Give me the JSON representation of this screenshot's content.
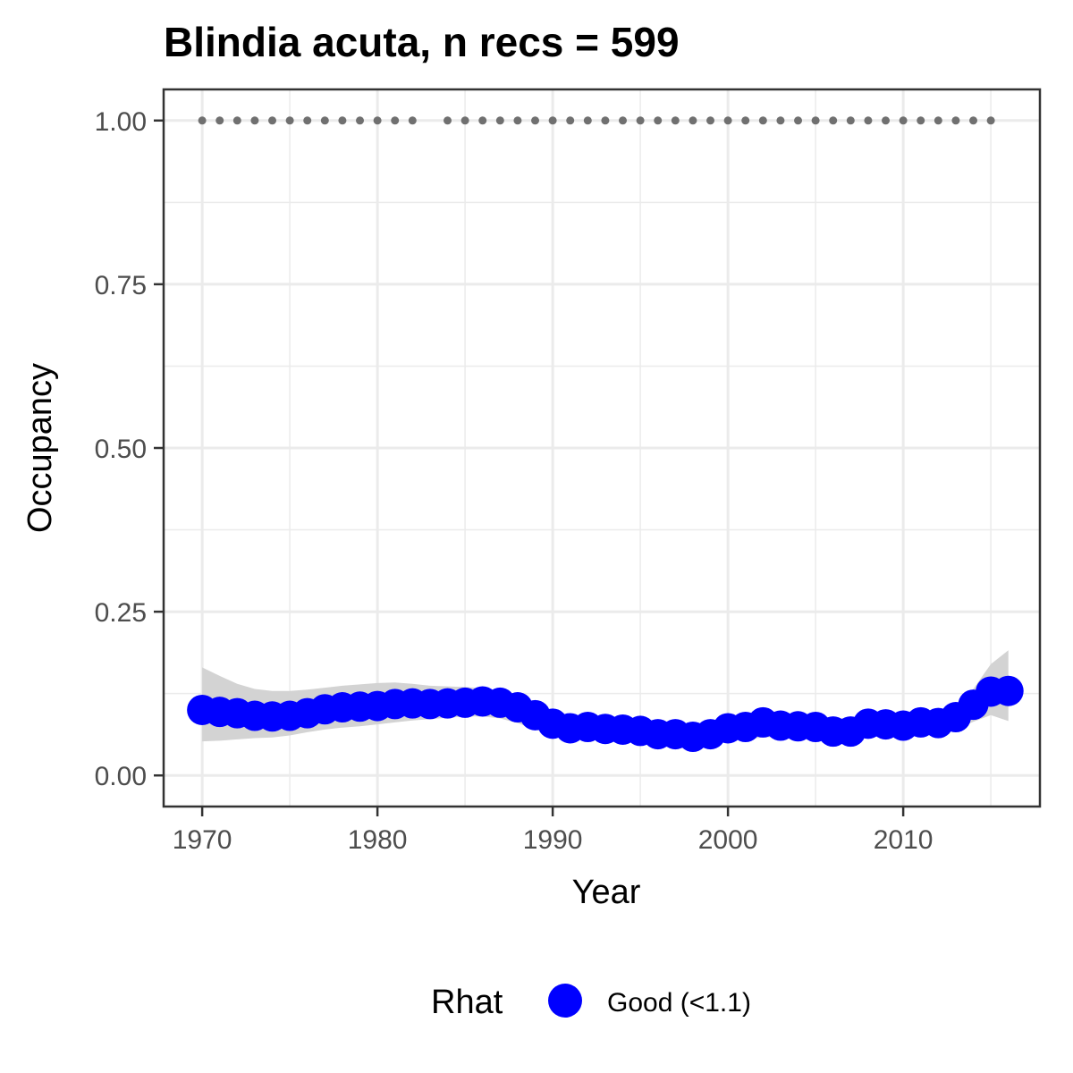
{
  "chart_data": {
    "type": "line",
    "title": "Blindia acuta, n recs = 599",
    "xlabel": "Year",
    "ylabel": "Occupancy",
    "xlim": [
      1967.8,
      2017.8
    ],
    "ylim": [
      -0.0475,
      1.0475
    ],
    "x_ticks": [
      1970,
      1980,
      1990,
      2000,
      2010
    ],
    "x_tick_labels": [
      "1970",
      "1980",
      "1990",
      "2000",
      "2010"
    ],
    "y_ticks": [
      0,
      0.25,
      0.5,
      0.75,
      1.0
    ],
    "y_tick_labels": [
      "0.00",
      "0.25",
      "0.50",
      "0.75",
      "1.00"
    ],
    "grid": true,
    "legend": {
      "position": "bottom",
      "title": "Rhat",
      "entries": [
        {
          "label": "Good (<1.1)",
          "color": "#0000ff"
        }
      ]
    },
    "colors": {
      "points": "#0000ff",
      "ribbon": "#d3d3d3",
      "record_years": "#707070",
      "grid": "#ebebeb",
      "panel_border": "#333333"
    },
    "series": [
      {
        "type": "points_with_ribbon",
        "x": [
          1970,
          1971,
          1972,
          1973,
          1974,
          1975,
          1976,
          1977,
          1978,
          1979,
          1980,
          1981,
          1982,
          1983,
          1984,
          1985,
          1986,
          1987,
          1988,
          1989,
          1990,
          1991,
          1992,
          1993,
          1994,
          1995,
          1996,
          1997,
          1998,
          1999,
          2000,
          2001,
          2002,
          2003,
          2004,
          2005,
          2006,
          2007,
          2008,
          2009,
          2010,
          2011,
          2012,
          2013,
          2014,
          2015,
          2016
        ],
        "values": [
          0.1,
          0.097,
          0.095,
          0.091,
          0.09,
          0.091,
          0.095,
          0.101,
          0.104,
          0.105,
          0.106,
          0.109,
          0.11,
          0.109,
          0.11,
          0.111,
          0.113,
          0.111,
          0.104,
          0.092,
          0.079,
          0.072,
          0.074,
          0.071,
          0.07,
          0.068,
          0.063,
          0.063,
          0.059,
          0.063,
          0.072,
          0.074,
          0.081,
          0.076,
          0.075,
          0.074,
          0.067,
          0.067,
          0.079,
          0.078,
          0.076,
          0.081,
          0.08,
          0.089,
          0.108,
          0.128,
          0.129
        ],
        "lower": [
          0.052,
          0.053,
          0.055,
          0.057,
          0.058,
          0.061,
          0.066,
          0.07,
          0.073,
          0.075,
          0.078,
          0.081,
          0.084,
          0.086,
          0.088,
          0.09,
          0.09,
          0.087,
          0.08,
          0.07,
          0.062,
          0.057,
          0.055,
          0.053,
          0.052,
          0.051,
          0.05,
          0.049,
          0.049,
          0.05,
          0.052,
          0.055,
          0.058,
          0.059,
          0.059,
          0.058,
          0.057,
          0.057,
          0.059,
          0.06,
          0.061,
          0.063,
          0.065,
          0.07,
          0.082,
          0.092,
          0.083
        ],
        "upper": [
          0.165,
          0.152,
          0.14,
          0.132,
          0.129,
          0.129,
          0.131,
          0.134,
          0.137,
          0.139,
          0.141,
          0.142,
          0.14,
          0.137,
          0.136,
          0.135,
          0.133,
          0.13,
          0.12,
          0.108,
          0.098,
          0.092,
          0.089,
          0.087,
          0.085,
          0.083,
          0.08,
          0.079,
          0.078,
          0.079,
          0.083,
          0.089,
          0.094,
          0.094,
          0.092,
          0.09,
          0.088,
          0.087,
          0.088,
          0.089,
          0.09,
          0.093,
          0.097,
          0.107,
          0.132,
          0.17,
          0.191
        ]
      },
      {
        "type": "record_years",
        "x": [
          1970,
          1971,
          1972,
          1973,
          1974,
          1975,
          1976,
          1977,
          1978,
          1979,
          1980,
          1981,
          1982,
          1984,
          1985,
          1986,
          1987,
          1988,
          1989,
          1990,
          1991,
          1992,
          1993,
          1994,
          1995,
          1996,
          1997,
          1998,
          1999,
          2000,
          2001,
          2002,
          2003,
          2004,
          2005,
          2006,
          2007,
          2008,
          2009,
          2010,
          2011,
          2012,
          2013,
          2014,
          2015
        ],
        "y": 1.0
      }
    ]
  }
}
